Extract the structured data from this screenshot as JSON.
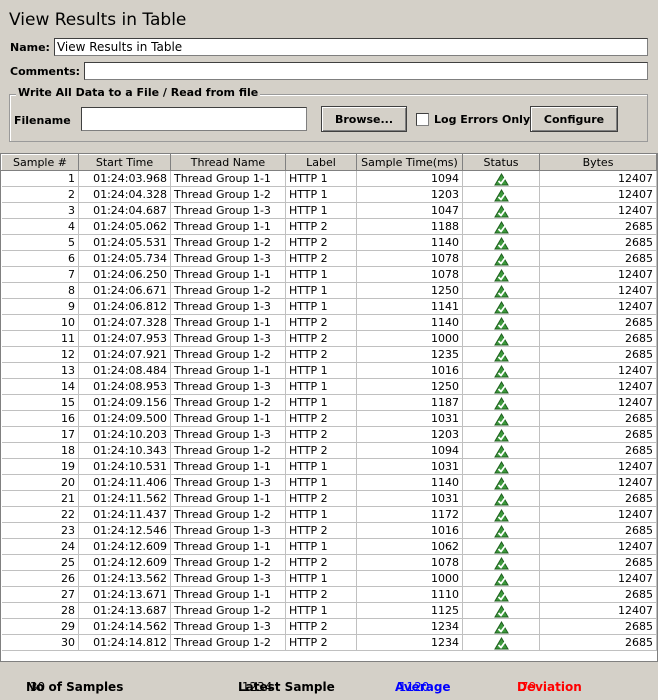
{
  "title": "View Results in Table",
  "name_label": "Name:",
  "name_value": "View Results in Table",
  "comments_label": "Comments:",
  "comments_value": "",
  "file_group": {
    "legend": "Write All Data to a File / Read from file",
    "filename_label": "Filename",
    "filename_value": "",
    "browse_label": "Browse...",
    "log_errors_label": "Log Errors Only",
    "log_errors_checked": false,
    "configure_label": "Configure"
  },
  "table": {
    "columns": [
      "Sample #",
      "Start Time",
      "Thread Name",
      "Label",
      "Sample Time(ms)",
      "Status",
      "Bytes"
    ],
    "rows": [
      {
        "n": "1",
        "time": "01:24:03.968",
        "thread": "Thread Group 1-1",
        "label": "HTTP 1",
        "ms": "1094",
        "status": "success-icon",
        "bytes": "12407"
      },
      {
        "n": "2",
        "time": "01:24:04.328",
        "thread": "Thread Group 1-2",
        "label": "HTTP 1",
        "ms": "1203",
        "status": "success-icon",
        "bytes": "12407"
      },
      {
        "n": "3",
        "time": "01:24:04.687",
        "thread": "Thread Group 1-3",
        "label": "HTTP 1",
        "ms": "1047",
        "status": "success-icon",
        "bytes": "12407"
      },
      {
        "n": "4",
        "time": "01:24:05.062",
        "thread": "Thread Group 1-1",
        "label": "HTTP 2",
        "ms": "1188",
        "status": "success-icon",
        "bytes": "2685"
      },
      {
        "n": "5",
        "time": "01:24:05.531",
        "thread": "Thread Group 1-2",
        "label": "HTTP 2",
        "ms": "1140",
        "status": "success-icon",
        "bytes": "2685"
      },
      {
        "n": "6",
        "time": "01:24:05.734",
        "thread": "Thread Group 1-3",
        "label": "HTTP 2",
        "ms": "1078",
        "status": "success-icon",
        "bytes": "2685"
      },
      {
        "n": "7",
        "time": "01:24:06.250",
        "thread": "Thread Group 1-1",
        "label": "HTTP 1",
        "ms": "1078",
        "status": "success-icon",
        "bytes": "12407"
      },
      {
        "n": "8",
        "time": "01:24:06.671",
        "thread": "Thread Group 1-2",
        "label": "HTTP 1",
        "ms": "1250",
        "status": "success-icon",
        "bytes": "12407"
      },
      {
        "n": "9",
        "time": "01:24:06.812",
        "thread": "Thread Group 1-3",
        "label": "HTTP 1",
        "ms": "1141",
        "status": "success-icon",
        "bytes": "12407"
      },
      {
        "n": "10",
        "time": "01:24:07.328",
        "thread": "Thread Group 1-1",
        "label": "HTTP 2",
        "ms": "1140",
        "status": "success-icon",
        "bytes": "2685"
      },
      {
        "n": "11",
        "time": "01:24:07.953",
        "thread": "Thread Group 1-3",
        "label": "HTTP 2",
        "ms": "1000",
        "status": "success-icon",
        "bytes": "2685"
      },
      {
        "n": "12",
        "time": "01:24:07.921",
        "thread": "Thread Group 1-2",
        "label": "HTTP 2",
        "ms": "1235",
        "status": "success-icon",
        "bytes": "2685"
      },
      {
        "n": "13",
        "time": "01:24:08.484",
        "thread": "Thread Group 1-1",
        "label": "HTTP 1",
        "ms": "1016",
        "status": "success-icon",
        "bytes": "12407"
      },
      {
        "n": "14",
        "time": "01:24:08.953",
        "thread": "Thread Group 1-3",
        "label": "HTTP 1",
        "ms": "1250",
        "status": "success-icon",
        "bytes": "12407"
      },
      {
        "n": "15",
        "time": "01:24:09.156",
        "thread": "Thread Group 1-2",
        "label": "HTTP 1",
        "ms": "1187",
        "status": "success-icon",
        "bytes": "12407"
      },
      {
        "n": "16",
        "time": "01:24:09.500",
        "thread": "Thread Group 1-1",
        "label": "HTTP 2",
        "ms": "1031",
        "status": "success-icon",
        "bytes": "2685"
      },
      {
        "n": "17",
        "time": "01:24:10.203",
        "thread": "Thread Group 1-3",
        "label": "HTTP 2",
        "ms": "1203",
        "status": "success-icon",
        "bytes": "2685"
      },
      {
        "n": "18",
        "time": "01:24:10.343",
        "thread": "Thread Group 1-2",
        "label": "HTTP 2",
        "ms": "1094",
        "status": "success-icon",
        "bytes": "2685"
      },
      {
        "n": "19",
        "time": "01:24:10.531",
        "thread": "Thread Group 1-1",
        "label": "HTTP 1",
        "ms": "1031",
        "status": "success-icon",
        "bytes": "12407"
      },
      {
        "n": "20",
        "time": "01:24:11.406",
        "thread": "Thread Group 1-3",
        "label": "HTTP 1",
        "ms": "1140",
        "status": "success-icon",
        "bytes": "12407"
      },
      {
        "n": "21",
        "time": "01:24:11.562",
        "thread": "Thread Group 1-1",
        "label": "HTTP 2",
        "ms": "1031",
        "status": "success-icon",
        "bytes": "2685"
      },
      {
        "n": "22",
        "time": "01:24:11.437",
        "thread": "Thread Group 1-2",
        "label": "HTTP 1",
        "ms": "1172",
        "status": "success-icon",
        "bytes": "12407"
      },
      {
        "n": "23",
        "time": "01:24:12.546",
        "thread": "Thread Group 1-3",
        "label": "HTTP 2",
        "ms": "1016",
        "status": "success-icon",
        "bytes": "2685"
      },
      {
        "n": "24",
        "time": "01:24:12.609",
        "thread": "Thread Group 1-1",
        "label": "HTTP 1",
        "ms": "1062",
        "status": "success-icon",
        "bytes": "12407"
      },
      {
        "n": "25",
        "time": "01:24:12.609",
        "thread": "Thread Group 1-2",
        "label": "HTTP 2",
        "ms": "1078",
        "status": "success-icon",
        "bytes": "2685"
      },
      {
        "n": "26",
        "time": "01:24:13.562",
        "thread": "Thread Group 1-3",
        "label": "HTTP 1",
        "ms": "1000",
        "status": "success-icon",
        "bytes": "12407"
      },
      {
        "n": "27",
        "time": "01:24:13.671",
        "thread": "Thread Group 1-1",
        "label": "HTTP 2",
        "ms": "1110",
        "status": "success-icon",
        "bytes": "2685"
      },
      {
        "n": "28",
        "time": "01:24:13.687",
        "thread": "Thread Group 1-2",
        "label": "HTTP 1",
        "ms": "1125",
        "status": "success-icon",
        "bytes": "12407"
      },
      {
        "n": "29",
        "time": "01:24:14.562",
        "thread": "Thread Group 1-3",
        "label": "HTTP 2",
        "ms": "1234",
        "status": "success-icon",
        "bytes": "2685"
      },
      {
        "n": "30",
        "time": "01:24:14.812",
        "thread": "Thread Group 1-2",
        "label": "HTTP 2",
        "ms": "1234",
        "status": "success-icon",
        "bytes": "2685"
      }
    ]
  },
  "footer": {
    "samples_label": "No of Samples",
    "samples_value": "30",
    "latest_label": "Latest Sample",
    "latest_value": "1234",
    "average_label": "Average",
    "average_value": "1120",
    "average_color": "#0000ff",
    "deviation_label": "Deviation",
    "deviation_value": "79",
    "deviation_color": "#ff0000"
  }
}
